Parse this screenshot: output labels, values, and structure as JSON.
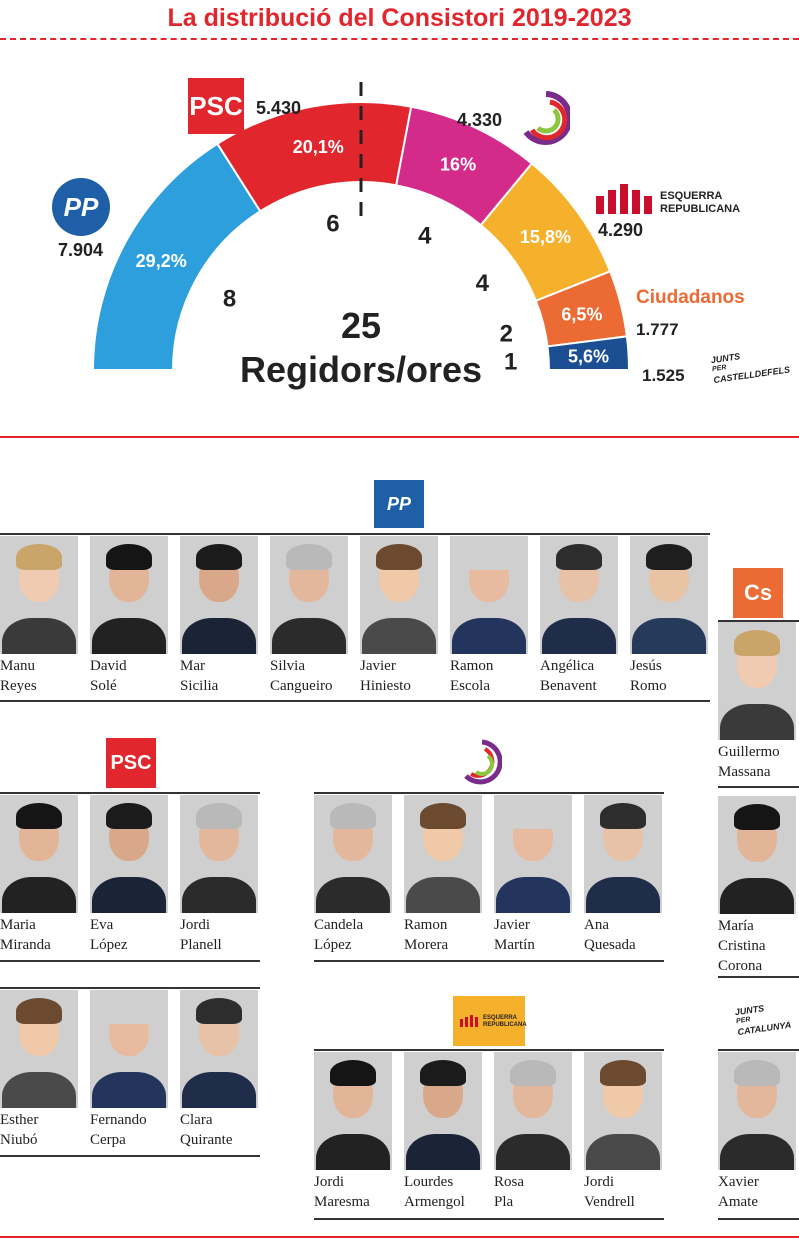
{
  "title": "La distribució del Consistori 2019-2023",
  "chart_data": {
    "type": "pie",
    "total_label": "25",
    "total_sublabel": "Regidors/ores",
    "slices": [
      {
        "party": "PP",
        "votes": "7.904",
        "percent": "29,2%",
        "seats": 8,
        "color": "#2e9fdd"
      },
      {
        "party": "PSC",
        "votes": "5.430",
        "percent": "20,1%",
        "seats": 6,
        "color": "#e1262d"
      },
      {
        "party": "Movem",
        "votes": "4.330",
        "percent": "16%",
        "seats": 4,
        "color": "#d42a8a"
      },
      {
        "party": "Esquerra Republicana",
        "votes": "4.290",
        "percent": "15,8%",
        "seats": 4,
        "color": "#f6b12c"
      },
      {
        "party": "Ciudadanos",
        "votes": "1.777",
        "percent": "6,5%",
        "seats": 2,
        "color": "#ec6a34"
      },
      {
        "party": "Junts per Castelldefels",
        "votes": "1.525",
        "percent": "5,6%",
        "seats": 1,
        "color": "#1c4e94"
      }
    ]
  },
  "logos": {
    "psc": "PSC",
    "pp": "PP",
    "erc_line1": "ESQUERRA",
    "erc_line2": "REPUBLICANA",
    "cs": "Ciudadanos",
    "cs_short": "Cs",
    "junts_line1": "JUNTS",
    "junts_per": "PER",
    "junts_line2": "CASTELLDEFELS",
    "junts2_line2": "CATALUNYA"
  },
  "groups": {
    "pp": [
      {
        "first": "Manu",
        "last": "Reyes"
      },
      {
        "first": "David",
        "last": "Solé"
      },
      {
        "first": "Mar",
        "last": "Sicilia"
      },
      {
        "first": "Silvia",
        "last": "Cangueiro"
      },
      {
        "first": "Javier",
        "last": "Hiniesto"
      },
      {
        "first": "Ramon",
        "last": "Escola"
      },
      {
        "first": "Angélica",
        "last": "Benavent"
      },
      {
        "first": "Jesús",
        "last": "Romo"
      }
    ],
    "cs": [
      {
        "first": "Guillermo",
        "last": "Massana"
      },
      {
        "first": "María",
        "last": "Cristina",
        "last2": "Corona"
      }
    ],
    "psc": [
      {
        "first": "Maria",
        "last": "Miranda"
      },
      {
        "first": "Eva",
        "last": "López"
      },
      {
        "first": "Jordi",
        "last": "Planell"
      },
      {
        "first": "Esther",
        "last": "Niubó"
      },
      {
        "first": "Fernando",
        "last": "Cerpa"
      },
      {
        "first": "Clara",
        "last": "Quirante"
      }
    ],
    "movem": [
      {
        "first": "Candela",
        "last": "López"
      },
      {
        "first": "Ramon",
        "last": "Morera"
      },
      {
        "first": "Javier",
        "last": "Martín"
      },
      {
        "first": "Ana",
        "last": "Quesada"
      }
    ],
    "erc": [
      {
        "first": "Jordi",
        "last": "Maresma"
      },
      {
        "first": "Lourdes",
        "last": "Armengol"
      },
      {
        "first": "Rosa",
        "last": "Pla"
      },
      {
        "first": "Jordi",
        "last": "Vendrell"
      }
    ],
    "junts": [
      {
        "first": "Xavier",
        "last": "Amate"
      }
    ]
  }
}
